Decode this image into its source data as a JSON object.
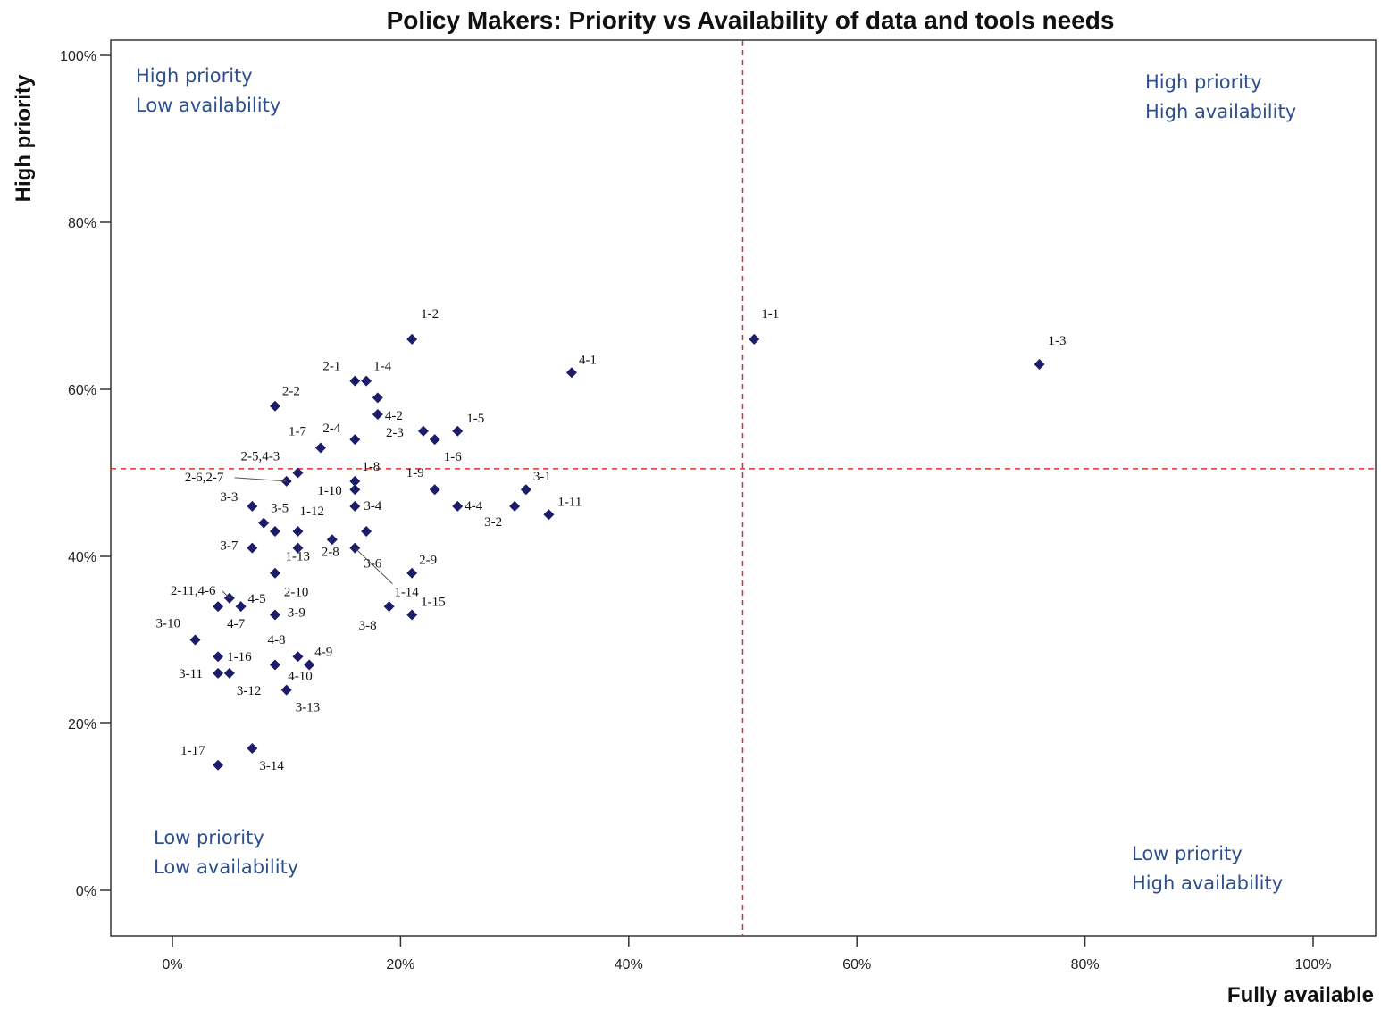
{
  "chart_data": {
    "type": "scatter",
    "title": "Policy Makers: Priority vs Availability of data and tools needs",
    "xlabel": "Fully available",
    "ylabel": "High priority",
    "xlim": [
      -5,
      105
    ],
    "ylim": [
      -5,
      102
    ],
    "x_ticks": [
      {
        "value": 0,
        "label": "0%"
      },
      {
        "value": 20,
        "label": "20%"
      },
      {
        "value": 40,
        "label": "40%"
      },
      {
        "value": 60,
        "label": "60%"
      },
      {
        "value": 80,
        "label": "80%"
      },
      {
        "value": 100,
        "label": "100%"
      }
    ],
    "y_ticks": [
      {
        "value": 0,
        "label": "0%"
      },
      {
        "value": 20,
        "label": "20%"
      },
      {
        "value": 40,
        "label": "40%"
      },
      {
        "value": 60,
        "label": "60%"
      },
      {
        "value": 80,
        "label": "80%"
      },
      {
        "value": 100,
        "label": "100%"
      }
    ],
    "reference_lines": {
      "x": 50,
      "y": 50.5,
      "color": "#d9302a",
      "style": "dashed"
    },
    "marker_color": "#1c1c6b",
    "marker_shape": "diamond",
    "grid": false,
    "points": [
      {
        "x": 21,
        "y": 66,
        "label": "1-2"
      },
      {
        "x": 51,
        "y": 66,
        "label": "1-1"
      },
      {
        "x": 76,
        "y": 63,
        "label": "1-3"
      },
      {
        "x": 35,
        "y": 62,
        "label": "4-1"
      },
      {
        "x": 16,
        "y": 61,
        "label": "2-1"
      },
      {
        "x": 17,
        "y": 61,
        "label": "1-4"
      },
      {
        "x": 9,
        "y": 58,
        "label": "2-2"
      },
      {
        "x": 18,
        "y": 59,
        "label": ""
      },
      {
        "x": 18,
        "y": 57,
        "label": "4-2"
      },
      {
        "x": 22,
        "y": 55,
        "label": "2-3"
      },
      {
        "x": 25,
        "y": 55,
        "label": "1-5"
      },
      {
        "x": 16,
        "y": 54,
        "label": "2-4"
      },
      {
        "x": 13,
        "y": 53,
        "label": "1-7"
      },
      {
        "x": 23,
        "y": 54,
        "label": "1-6"
      },
      {
        "x": 11,
        "y": 50,
        "label": "2-5,4-3"
      },
      {
        "x": 10,
        "y": 49,
        "label": "2-6,2-7"
      },
      {
        "x": 16,
        "y": 49,
        "label": "1-8"
      },
      {
        "x": 23,
        "y": 48,
        "label": "1-9"
      },
      {
        "x": 16,
        "y": 48,
        "label": "1-10"
      },
      {
        "x": 31,
        "y": 48,
        "label": "3-1"
      },
      {
        "x": 7,
        "y": 46,
        "label": "3-3"
      },
      {
        "x": 25,
        "y": 46,
        "label": "4-4"
      },
      {
        "x": 30,
        "y": 46,
        "label": "3-2"
      },
      {
        "x": 33,
        "y": 45,
        "label": "1-11"
      },
      {
        "x": 16,
        "y": 46,
        "label": "3-4"
      },
      {
        "x": 8,
        "y": 44,
        "label": "3-5"
      },
      {
        "x": 11,
        "y": 43,
        "label": "1-12"
      },
      {
        "x": 9,
        "y": 43,
        "label": ""
      },
      {
        "x": 17,
        "y": 43,
        "label": ""
      },
      {
        "x": 14,
        "y": 42,
        "label": "2-8"
      },
      {
        "x": 7,
        "y": 41,
        "label": "3-7"
      },
      {
        "x": 11,
        "y": 41,
        "label": "1-13"
      },
      {
        "x": 16,
        "y": 41,
        "label": "3-6"
      },
      {
        "x": 9,
        "y": 38,
        "label": "2-10"
      },
      {
        "x": 21,
        "y": 38,
        "label": "2-9"
      },
      {
        "x": 5,
        "y": 35,
        "label": "2-11,4-6"
      },
      {
        "x": 4,
        "y": 34,
        "label": "4-7"
      },
      {
        "x": 6,
        "y": 34,
        "label": "4-5"
      },
      {
        "x": 9,
        "y": 33,
        "label": "3-9"
      },
      {
        "x": 19,
        "y": 34,
        "label": "3-8"
      },
      {
        "x": 21,
        "y": 33,
        "label": "1-15"
      },
      {
        "x": 2,
        "y": 30,
        "label": "3-10"
      },
      {
        "x": 4,
        "y": 28,
        "label": "1-16"
      },
      {
        "x": 11,
        "y": 28,
        "label": "4-8"
      },
      {
        "x": 9,
        "y": 27,
        "label": ""
      },
      {
        "x": 12,
        "y": 27,
        "label": "4-9"
      },
      {
        "x": 4,
        "y": 26,
        "label": "3-11"
      },
      {
        "x": 5,
        "y": 26,
        "label": "3-12"
      },
      {
        "x": 10,
        "y": 24,
        "label": "3-13"
      },
      {
        "x": 7,
        "y": 17,
        "label": "3-14"
      },
      {
        "x": 4,
        "y": 15,
        "label": "1-17"
      },
      {
        "x": 16,
        "y": 41,
        "label": "1-14"
      },
      {
        "x": 12,
        "y": 27,
        "label": "4-10"
      }
    ],
    "quadrant_labels": {
      "top_left": [
        "High priority",
        "Low availability"
      ],
      "top_right": [
        "High priority",
        "High availability"
      ],
      "bottom_left": [
        "Low priority",
        "Low availability"
      ],
      "bottom_right": [
        "Low priority",
        "High availability"
      ]
    }
  }
}
